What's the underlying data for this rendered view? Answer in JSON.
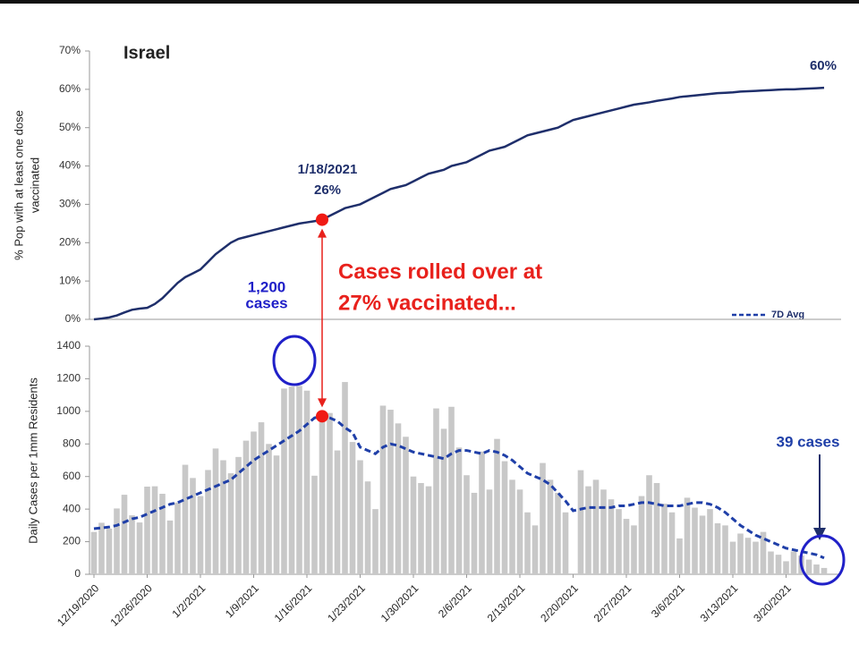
{
  "chart_data": [
    {
      "type": "line",
      "title": "Israel",
      "y_label": [
        "% Pop with at least one dose",
        "vaccinated"
      ],
      "ylim": [
        0,
        70
      ],
      "yticks": [
        {
          "value": 0,
          "label": "0%"
        },
        {
          "value": 10,
          "label": "10%"
        },
        {
          "value": 20,
          "label": "20%"
        },
        {
          "value": 30,
          "label": "30%"
        },
        {
          "value": 40,
          "label": "40%"
        },
        {
          "value": 50,
          "label": "50%"
        },
        {
          "value": 60,
          "label": "60%"
        },
        {
          "value": 70,
          "label": "70%"
        }
      ],
      "series": [
        {
          "color": "#1f2f6b",
          "values": [
            0,
            0.2,
            0.5,
            1,
            1.8,
            2.5,
            2.8,
            3,
            4,
            5.5,
            7.5,
            9.5,
            11,
            12,
            13,
            15,
            17,
            18.5,
            20,
            21,
            21.5,
            22,
            22.5,
            23,
            23.5,
            24,
            24.5,
            25,
            25.3,
            25.6,
            26,
            27,
            28,
            29,
            29.5,
            30,
            31,
            32,
            33,
            34,
            34.5,
            35,
            36,
            37,
            38,
            38.5,
            39,
            40,
            40.5,
            41,
            42,
            43,
            44,
            44.5,
            45,
            46,
            47,
            48,
            48.5,
            49,
            49.5,
            50,
            51,
            52,
            52.5,
            53,
            53.5,
            54,
            54.5,
            55,
            55.5,
            56,
            56.3,
            56.6,
            57,
            57.3,
            57.6,
            58,
            58.2,
            58.4,
            58.6,
            58.8,
            59,
            59.1,
            59.2,
            59.4,
            59.5,
            59.6,
            59.7,
            59.8,
            59.9,
            60,
            60,
            60.1,
            60.2,
            60.3,
            60.4
          ]
        }
      ],
      "annotations": {
        "date": "1/18/2021",
        "pct": "26%",
        "end": "60%",
        "rolled_1": "Cases rolled over at",
        "rolled_2": "27% vaccinated..."
      }
    },
    {
      "type": "bar",
      "y_label": "Daily Cases per 1mm Residents",
      "ylim": [
        0,
        1400
      ],
      "yticks": [
        0,
        200,
        400,
        600,
        800,
        1000,
        1200,
        1400
      ],
      "categories": [
        "12/19/2020",
        null,
        null,
        null,
        null,
        null,
        null,
        "12/26/2020",
        null,
        null,
        null,
        null,
        null,
        null,
        "1/2/2021",
        null,
        null,
        null,
        null,
        null,
        null,
        "1/9/2021",
        null,
        null,
        null,
        null,
        null,
        null,
        "1/16/2021",
        null,
        null,
        null,
        null,
        null,
        null,
        "1/23/2021",
        null,
        null,
        null,
        null,
        null,
        null,
        "1/30/2021",
        null,
        null,
        null,
        null,
        null,
        null,
        "2/6/2021",
        null,
        null,
        null,
        null,
        null,
        null,
        "2/13/2021",
        null,
        null,
        null,
        null,
        null,
        null,
        "2/20/2021",
        null,
        null,
        null,
        null,
        null,
        null,
        "2/27/2021",
        null,
        null,
        null,
        null,
        null,
        null,
        "3/6/2021",
        null,
        null,
        null,
        null,
        null,
        null,
        "3/13/2021",
        null,
        null,
        null,
        null,
        null,
        null,
        "3/20/2021",
        null,
        null,
        null,
        null,
        null
      ],
      "series": [
        {
          "color": "#c8c8c8",
          "values": [
            260,
            316,
            280,
            404,
            488,
            362,
            318,
            538,
            540,
            494,
            330,
            440,
            672,
            591,
            480,
            640,
            772,
            700,
            620,
            720,
            820,
            876,
            933,
            800,
            729,
            1140,
            1152,
            1156,
            1127,
            605,
            976,
            990,
            760,
            1180,
            812,
            700,
            570,
            400,
            1035,
            1010,
            926,
            844,
            600,
            560,
            540,
            1018,
            893,
            1028,
            778,
            608,
            500,
            753,
            520,
            831,
            694,
            580,
            520,
            380,
            300,
            683,
            580,
            500,
            380,
            0,
            639,
            540,
            580,
            520,
            460,
            400,
            340,
            300,
            480,
            608,
            560,
            433,
            380,
            220,
            470,
            409,
            360,
            400,
            313,
            300,
            200,
            250,
            224,
            200,
            260,
            140,
            120,
            80,
            140,
            115,
            90,
            60,
            39
          ]
        },
        {
          "name": "7D Avg",
          "color": "#1f3fa8",
          "values": [
            280,
            285,
            290,
            300,
            320,
            340,
            350,
            370,
            390,
            410,
            430,
            440,
            460,
            480,
            500,
            520,
            540,
            560,
            580,
            620,
            660,
            700,
            730,
            760,
            790,
            820,
            850,
            880,
            920,
            960,
            970,
            960,
            940,
            900,
            870,
            780,
            760,
            740,
            780,
            800,
            790,
            770,
            750,
            740,
            730,
            720,
            710,
            740,
            760,
            760,
            750,
            740,
            760,
            750,
            730,
            700,
            660,
            620,
            600,
            580,
            550,
            500,
            450,
            390,
            400,
            410,
            410,
            410,
            410,
            420,
            420,
            430,
            440,
            440,
            430,
            420,
            420,
            420,
            430,
            440,
            440,
            430,
            410,
            380,
            340,
            300,
            270,
            240,
            220,
            200,
            180,
            160,
            150,
            140,
            130,
            120,
            100
          ]
        }
      ],
      "annotations": {
        "peak_1": "1,200",
        "peak_2": "cases",
        "end": "39 cases"
      }
    }
  ]
}
